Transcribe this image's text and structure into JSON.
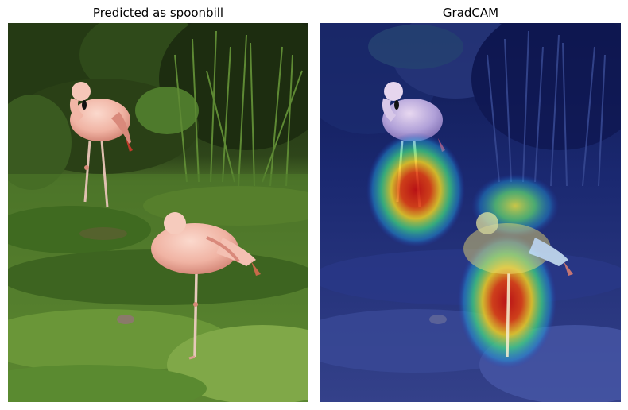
{
  "figure": {
    "left_title": "Predicted as spoonbill",
    "right_title": "GradCAM"
  },
  "scene": {
    "subject": "flamingo-pair",
    "colors": {
      "foliage_dark": "#1c2a10",
      "foliage_mid": "#3e5a22",
      "grass_light": "#6e9a3a",
      "flamingo": "#f2b6a6",
      "flamingo_shade": "#d9897b",
      "beak": "#c23a2a",
      "overlay_blue": "#1b2ea8"
    }
  },
  "heatmap": {
    "colormap": "jet",
    "hotspots": [
      {
        "name": "standing-flamingo-legs",
        "intensity": 1.0
      },
      {
        "name": "front-flamingo-body-legs",
        "intensity": 0.95
      },
      {
        "name": "front-flamingo-back",
        "intensity": 0.55
      }
    ]
  }
}
